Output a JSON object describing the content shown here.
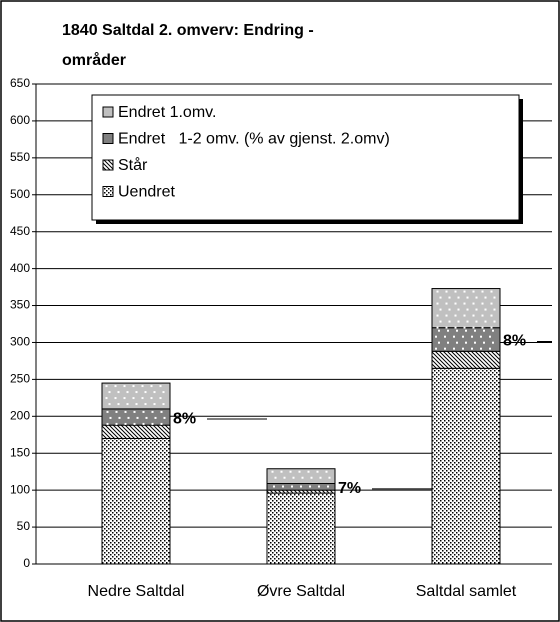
{
  "chart_data": {
    "type": "stacked_bar",
    "title": [
      "1840 Saltdal 2. omverv: Endring -",
      "områder"
    ],
    "categories": [
      "Nedre Saltdal",
      "Øvre Saltdal",
      "Saltdal samlet"
    ],
    "series": [
      {
        "name": "Uendret",
        "color": "#ffffff",
        "pattern": "dots",
        "values": [
          170,
          96,
          265
        ]
      },
      {
        "name": "Står",
        "color": "#ffffff",
        "pattern": "hatch",
        "values": [
          18,
          4,
          23
        ]
      },
      {
        "name": "Endret   1-2 omv. (% av gjenst. 2.omv)",
        "color": "#808080",
        "pattern": "dots",
        "values": [
          22,
          9,
          32
        ]
      },
      {
        "name": "Endret 1.omv.",
        "color": "#c0c0c0",
        "pattern": "dots",
        "values": [
          35,
          20,
          53
        ]
      }
    ],
    "annotations": [
      "8%",
      "7%",
      "8%"
    ],
    "ylim": [
      0,
      650
    ],
    "yticks": [
      0,
      50,
      100,
      150,
      200,
      250,
      300,
      350,
      400,
      450,
      500,
      550,
      600,
      650
    ],
    "grid": true
  }
}
